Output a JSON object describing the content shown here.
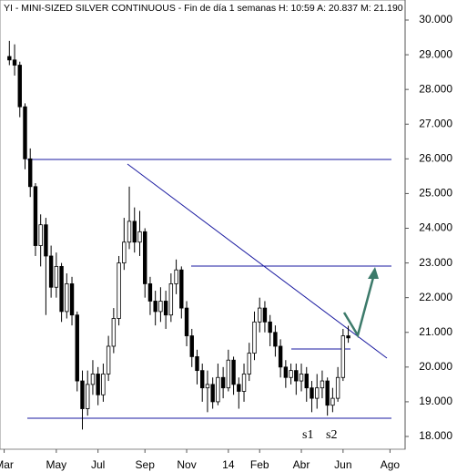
{
  "chart_data": {
    "type": "candlestick",
    "title": "YI - MINI-SIZED SILVER CONTINUOUS - Fin de día 1 semanas H: 10:59 A: 20.837 M: 21.190",
    "open": [
      28.95,
      28.85,
      28.7,
      27.5,
      26.0,
      25.2,
      23.5,
      24.1,
      23.2,
      22.3,
      22.9,
      21.6,
      22.4,
      21.5,
      19.6,
      18.8,
      19.5,
      19.8,
      19.2,
      19.8,
      20.6,
      21.4,
      23.0,
      23.6,
      24.2,
      23.6,
      23.9,
      22.4,
      21.9,
      21.6,
      21.9,
      21.5,
      22.4,
      22.8,
      21.7,
      20.9,
      20.3,
      19.9,
      19.4,
      19.5,
      19.0,
      19.7,
      19.4,
      20.2,
      19.5,
      19.3,
      19.8,
      20.4,
      21.3,
      21.7,
      21.3,
      21.0,
      20.6,
      20.0,
      19.7,
      19.9,
      19.6,
      19.8,
      19.4,
      19.1,
      19.4,
      19.6,
      18.9,
      19.1,
      19.7,
      20.9
    ],
    "high": [
      29.4,
      29.3,
      28.8,
      27.6,
      26.3,
      25.3,
      24.4,
      24.3,
      23.5,
      23.3,
      23.0,
      22.7,
      22.6,
      21.6,
      19.9,
      19.9,
      20.2,
      20.0,
      20.1,
      20.9,
      21.7,
      23.2,
      24.3,
      25.2,
      24.6,
      24.5,
      24.0,
      22.6,
      22.2,
      22.3,
      22.2,
      22.7,
      23.1,
      22.9,
      21.9,
      21.1,
      20.5,
      20.1,
      19.9,
      19.7,
      20.1,
      20.0,
      20.5,
      20.3,
      19.7,
      20.1,
      20.7,
      21.6,
      22.0,
      21.9,
      21.5,
      21.2,
      20.8,
      20.2,
      20.1,
      20.1,
      20.1,
      20.0,
      19.6,
      19.8,
      19.9,
      19.7,
      19.4,
      20.0,
      21.1,
      21.19
    ],
    "low": [
      28.7,
      28.4,
      27.2,
      25.7,
      24.9,
      23.2,
      22.9,
      21.5,
      22.0,
      22.0,
      21.3,
      21.4,
      21.2,
      19.3,
      18.2,
      18.6,
      19.2,
      18.9,
      19.0,
      19.6,
      20.4,
      21.2,
      22.8,
      23.4,
      23.3,
      23.2,
      22.0,
      21.5,
      21.2,
      21.3,
      21.1,
      21.3,
      22.1,
      21.4,
      20.6,
      20.0,
      19.5,
      19.0,
      18.7,
      18.8,
      18.9,
      19.1,
      19.3,
      19.2,
      18.8,
      19.0,
      19.6,
      20.2,
      21.0,
      21.0,
      20.6,
      20.3,
      19.7,
      19.4,
      19.5,
      19.2,
      19.3,
      19.0,
      18.7,
      18.8,
      19.1,
      18.6,
      18.7,
      19.0,
      19.6,
      20.7
    ],
    "close": [
      28.85,
      28.7,
      27.5,
      26.0,
      25.2,
      23.5,
      24.1,
      23.2,
      22.3,
      22.9,
      21.6,
      22.4,
      21.5,
      19.6,
      18.8,
      19.5,
      19.8,
      19.2,
      19.8,
      20.6,
      21.4,
      23.0,
      23.6,
      24.2,
      23.6,
      23.9,
      22.4,
      21.9,
      21.6,
      21.9,
      21.5,
      22.4,
      22.8,
      21.7,
      20.9,
      20.3,
      19.9,
      19.4,
      19.5,
      19.0,
      19.7,
      19.4,
      20.2,
      19.5,
      19.3,
      19.8,
      20.4,
      21.3,
      21.7,
      21.3,
      21.0,
      20.6,
      20.0,
      19.7,
      19.9,
      19.6,
      19.8,
      19.4,
      19.1,
      19.4,
      19.6,
      18.9,
      19.1,
      19.7,
      20.9,
      20.84
    ],
    "up_color": "#ffffff",
    "down_color": "#000000",
    "xlim": [
      -1.8,
      75.9
    ],
    "xticks": [
      {
        "value": -1,
        "label": "Mar"
      },
      {
        "value": 9,
        "label": "May"
      },
      {
        "value": 17,
        "label": "Jul"
      },
      {
        "value": 26,
        "label": "Sep"
      },
      {
        "value": 34,
        "label": "Nov"
      },
      {
        "value": 42,
        "label": "14"
      },
      {
        "value": 48,
        "label": "Feb"
      },
      {
        "value": 56,
        "label": "Abr"
      },
      {
        "value": 64,
        "label": "Jun"
      },
      {
        "value": 73,
        "label": "Ago"
      }
    ],
    "ylim": [
      17.6,
      30.6
    ],
    "yticks": [
      {
        "value": 18,
        "label": "18.000"
      },
      {
        "value": 19,
        "label": "19.000"
      },
      {
        "value": 20,
        "label": "20.000"
      },
      {
        "value": 21,
        "label": "21.000"
      },
      {
        "value": 22,
        "label": "22.000"
      },
      {
        "value": 23,
        "label": "23.000"
      },
      {
        "value": 24,
        "label": "24.000"
      },
      {
        "value": 25,
        "label": "25.000"
      },
      {
        "value": 26,
        "label": "26.000"
      },
      {
        "value": 27,
        "label": "27.000"
      },
      {
        "value": 28,
        "label": "28.000"
      },
      {
        "value": 29,
        "label": "29.000"
      },
      {
        "value": 30,
        "label": "30.000"
      }
    ],
    "annotations": [
      "s1",
      "s2"
    ]
  }
}
